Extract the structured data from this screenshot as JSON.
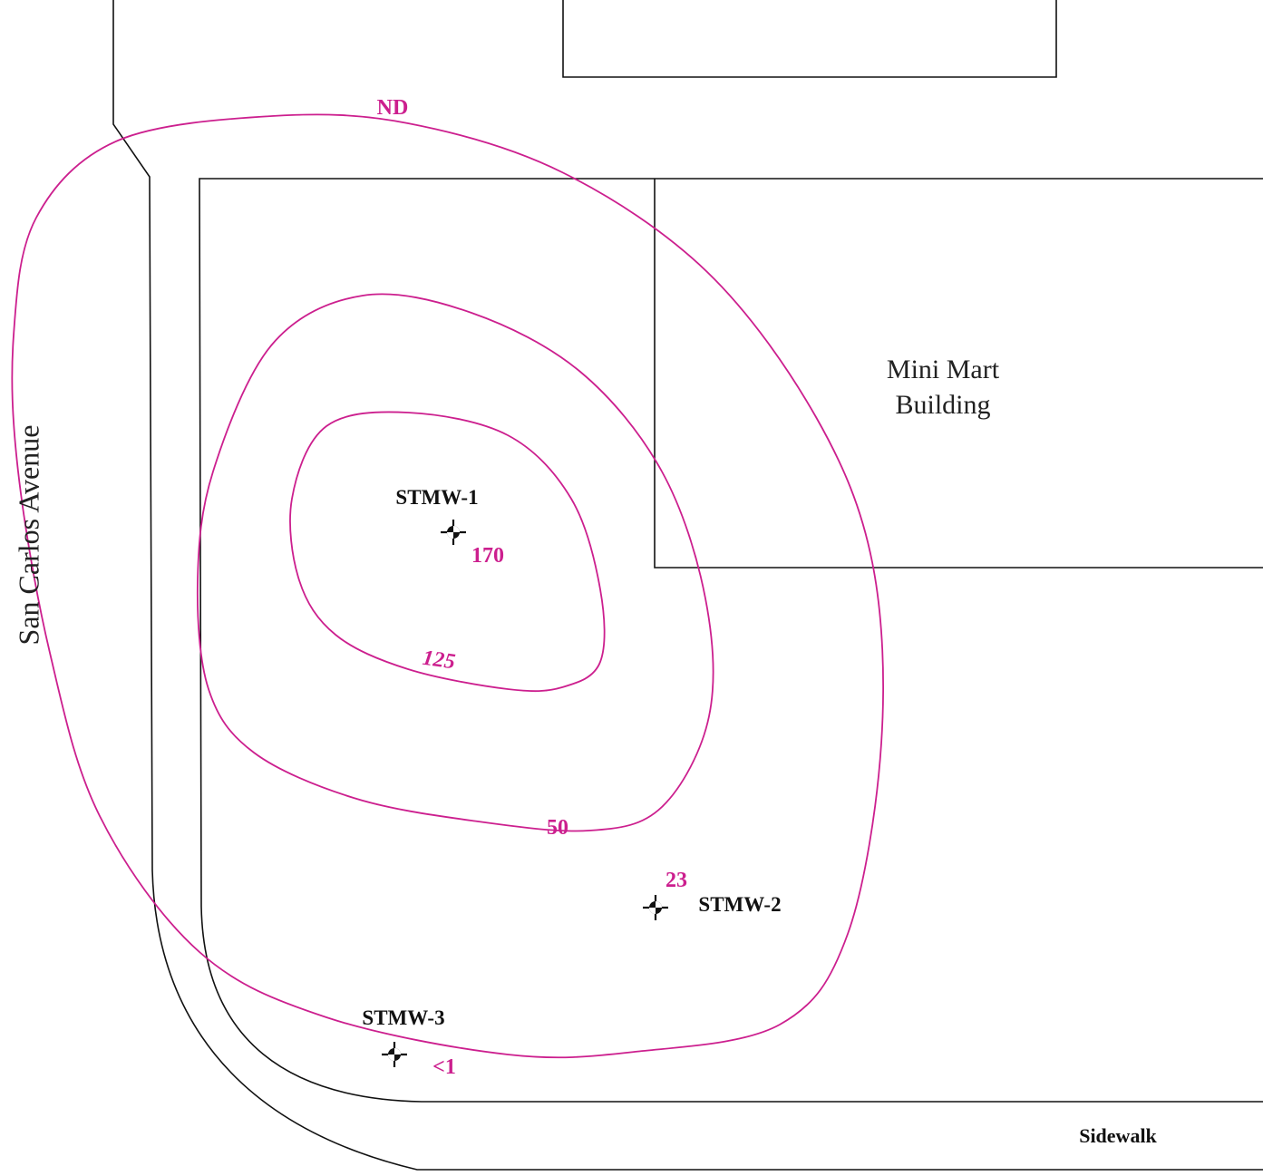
{
  "street": {
    "label": "San Carlos Avenue"
  },
  "building": {
    "label_lines": [
      "Mini Mart",
      "Building"
    ]
  },
  "sidewalk": {
    "label": "Sidewalk"
  },
  "contours": [
    {
      "label": "ND"
    },
    {
      "label": "50"
    },
    {
      "label": "125"
    }
  ],
  "wells": [
    {
      "name": "STMW-1",
      "value_label": "170"
    },
    {
      "name": "STMW-2",
      "value_label": "23"
    },
    {
      "name": "STMW-3",
      "value_label": "<1"
    }
  ]
}
